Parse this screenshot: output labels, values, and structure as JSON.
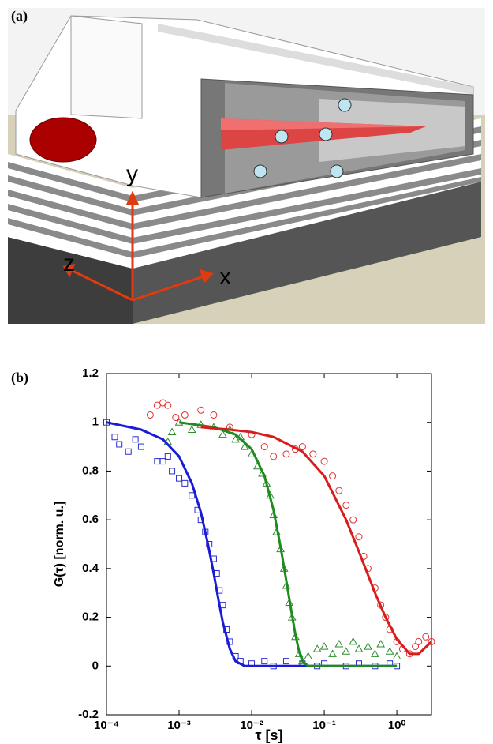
{
  "panel_a": {
    "label": "(a)",
    "axis_y": "y",
    "axis_z": "z",
    "axis_x": "x"
  },
  "chart_data": {
    "type": "scatter",
    "panel_label": "(b)",
    "xlabel": "τ [s]",
    "ylabel": "G(τ) [norm. u.]",
    "xscale": "log",
    "xlim": [
      0.0001,
      3
    ],
    "ylim": [
      -0.2,
      1.2
    ],
    "xticks": [
      {
        "value": 0.0001,
        "label": "10⁻⁴"
      },
      {
        "value": 0.001,
        "label": "10⁻³"
      },
      {
        "value": 0.01,
        "label": "10⁻²"
      },
      {
        "value": 0.1,
        "label": "10⁻¹"
      },
      {
        "value": 1,
        "label": "10⁰"
      }
    ],
    "yticks": [
      -0.2,
      0,
      0.2,
      0.4,
      0.6,
      0.8,
      1,
      1.2
    ],
    "series": [
      {
        "color": "#2b2bd0",
        "marker": "square",
        "x": [
          0.0001,
          0.00013,
          0.00015,
          0.0002,
          0.00025,
          0.0003,
          0.0005,
          0.0006,
          0.0007,
          0.0008,
          0.001,
          0.0012,
          0.0015,
          0.0018,
          0.002,
          0.0023,
          0.0026,
          0.003,
          0.0033,
          0.0036,
          0.004,
          0.0045,
          0.005,
          0.006,
          0.007,
          0.01,
          0.015,
          0.02,
          0.03,
          0.05,
          0.08,
          0.1,
          0.2,
          0.3,
          0.5,
          0.8,
          1
        ],
        "values": [
          1.0,
          0.94,
          0.91,
          0.88,
          0.93,
          0.9,
          0.84,
          0.84,
          0.86,
          0.8,
          0.77,
          0.75,
          0.7,
          0.64,
          0.6,
          0.55,
          0.5,
          0.44,
          0.38,
          0.31,
          0.25,
          0.15,
          0.1,
          0.04,
          0.02,
          0.01,
          0.02,
          0.0,
          0.02,
          0.01,
          0.0,
          0.01,
          0.0,
          0.01,
          0.0,
          0.01,
          0.0
        ]
      },
      {
        "color": "#2e8b2e",
        "marker": "triangle",
        "x": [
          0.0007,
          0.0008,
          0.001,
          0.0015,
          0.002,
          0.003,
          0.004,
          0.005,
          0.006,
          0.007,
          0.008,
          0.01,
          0.012,
          0.014,
          0.016,
          0.018,
          0.02,
          0.022,
          0.025,
          0.028,
          0.03,
          0.033,
          0.036,
          0.04,
          0.045,
          0.05,
          0.06,
          0.08,
          0.1,
          0.13,
          0.16,
          0.2,
          0.25,
          0.3,
          0.4,
          0.5,
          0.6,
          0.8,
          1
        ],
        "values": [
          0.92,
          0.96,
          1.0,
          0.97,
          0.99,
          0.98,
          0.95,
          0.97,
          0.93,
          0.94,
          0.9,
          0.87,
          0.82,
          0.79,
          0.75,
          0.7,
          0.62,
          0.55,
          0.48,
          0.4,
          0.33,
          0.26,
          0.2,
          0.12,
          0.05,
          0.02,
          0.04,
          0.07,
          0.08,
          0.05,
          0.09,
          0.06,
          0.1,
          0.07,
          0.08,
          0.05,
          0.09,
          0.06,
          0.04
        ]
      },
      {
        "color": "#e03030",
        "marker": "circle",
        "x": [
          0.0004,
          0.0005,
          0.0006,
          0.0007,
          0.0009,
          0.0012,
          0.002,
          0.003,
          0.005,
          0.01,
          0.015,
          0.02,
          0.03,
          0.04,
          0.05,
          0.07,
          0.1,
          0.13,
          0.16,
          0.2,
          0.25,
          0.3,
          0.35,
          0.4,
          0.5,
          0.6,
          0.7,
          0.8,
          1,
          1.2,
          1.5,
          1.8,
          2,
          2.5,
          3
        ],
        "values": [
          1.03,
          1.07,
          1.08,
          1.07,
          1.02,
          1.03,
          1.05,
          1.03,
          0.98,
          0.95,
          0.9,
          0.86,
          0.87,
          0.89,
          0.9,
          0.87,
          0.84,
          0.78,
          0.72,
          0.66,
          0.6,
          0.53,
          0.45,
          0.4,
          0.32,
          0.25,
          0.2,
          0.15,
          0.1,
          0.07,
          0.05,
          0.08,
          0.1,
          0.12,
          0.1
        ]
      },
      {
        "color": "#1a1ad8",
        "marker": "line",
        "x": [
          0.0001,
          0.0003,
          0.0006,
          0.001,
          0.0015,
          0.002,
          0.0025,
          0.003,
          0.0035,
          0.004,
          0.005,
          0.006,
          0.008,
          0.01,
          0.1,
          1
        ],
        "values": [
          1.0,
          0.97,
          0.93,
          0.86,
          0.75,
          0.63,
          0.5,
          0.38,
          0.27,
          0.18,
          0.07,
          0.02,
          0.0,
          0.0,
          0.0,
          0.0
        ]
      },
      {
        "color": "#1f8a1f",
        "marker": "line",
        "x": [
          0.001,
          0.003,
          0.006,
          0.01,
          0.015,
          0.02,
          0.025,
          0.03,
          0.035,
          0.04,
          0.045,
          0.05,
          0.06,
          1
        ],
        "values": [
          1.0,
          0.98,
          0.95,
          0.89,
          0.78,
          0.64,
          0.49,
          0.35,
          0.23,
          0.13,
          0.06,
          0.02,
          0.0,
          0.0
        ]
      },
      {
        "color": "#d81c1c",
        "marker": "line",
        "x": [
          0.002,
          0.005,
          0.01,
          0.02,
          0.05,
          0.1,
          0.2,
          0.3,
          0.5,
          0.7,
          1,
          1.5,
          2,
          3
        ],
        "values": [
          0.98,
          0.97,
          0.96,
          0.94,
          0.88,
          0.78,
          0.6,
          0.47,
          0.3,
          0.2,
          0.11,
          0.05,
          0.05,
          0.1
        ]
      }
    ]
  }
}
